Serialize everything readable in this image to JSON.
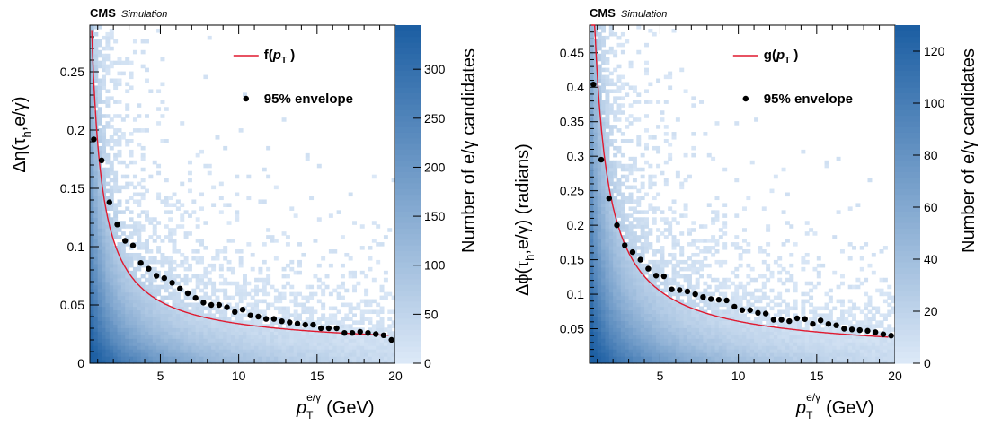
{
  "chart_data": [
    {
      "type": "heatmap",
      "experiment": "CMS",
      "status": "Simulation",
      "xlabel": "p",
      "xlabel_sub": "T",
      "xlabel_sup": "e/γ",
      "xlabel_unit": "(GeV)",
      "ylabel": "Δη(τ",
      "ylabel_sub": "h",
      "ylabel_tail": ",e/γ)",
      "zlabel": "Number of e/γ candidates",
      "xlim": [
        0.5,
        20
      ],
      "ylim": [
        0,
        0.29
      ],
      "zlim": [
        0,
        345
      ],
      "x_ticks": [
        5,
        10,
        15,
        20
      ],
      "x_tick_labels": [
        "5",
        "10",
        "15",
        "20"
      ],
      "y_ticks": [
        0,
        0.05,
        0.1,
        0.15,
        0.2,
        0.25
      ],
      "y_tick_labels": [
        "0",
        "0.05",
        "0.1",
        "0.15",
        "0.2",
        "0.25"
      ],
      "z_ticks": [
        0,
        50,
        100,
        150,
        200,
        250,
        300
      ],
      "z_tick_labels": [
        "0",
        "50",
        "100",
        "150",
        "200",
        "250",
        "300"
      ],
      "fit_function": {
        "name": "f",
        "arg": "p",
        "arg_sub": "T",
        "A": 0.0122,
        "B": 0.02,
        "C": 0.1565,
        "color": "#e0192f"
      },
      "envelope": {
        "name": "95% envelope",
        "x": [
          0.75,
          1.25,
          1.75,
          2.25,
          2.75,
          3.25,
          3.75,
          4.25,
          4.75,
          5.25,
          5.75,
          6.25,
          6.75,
          7.25,
          7.75,
          8.25,
          8.75,
          9.25,
          9.75,
          10.25,
          10.75,
          11.25,
          11.75,
          12.25,
          12.75,
          13.25,
          13.75,
          14.25,
          14.75,
          15.25,
          15.75,
          16.25,
          16.75,
          17.25,
          17.75,
          18.25,
          18.75,
          19.25,
          19.75
        ],
        "y": [
          0.192,
          0.174,
          0.138,
          0.119,
          0.105,
          0.101,
          0.086,
          0.081,
          0.075,
          0.073,
          0.069,
          0.064,
          0.06,
          0.056,
          0.052,
          0.05,
          0.05,
          0.048,
          0.044,
          0.046,
          0.041,
          0.04,
          0.038,
          0.038,
          0.036,
          0.035,
          0.034,
          0.033,
          0.033,
          0.03,
          0.03,
          0.03,
          0.026,
          0.026,
          0.027,
          0.026,
          0.025,
          0.024,
          0.02
        ]
      },
      "legend_position": "top-right",
      "colormap": [
        "#dbe8f7",
        "#1d5fa3"
      ]
    },
    {
      "type": "heatmap",
      "experiment": "CMS",
      "status": "Simulation",
      "xlabel": "p",
      "xlabel_sub": "T",
      "xlabel_sup": "e/γ",
      "xlabel_unit": "(GeV)",
      "ylabel": "Δϕ(τ",
      "ylabel_sub": "h",
      "ylabel_tail": ",e/γ) (radians)",
      "zlabel": "Number of e/γ candidates",
      "xlim": [
        0.5,
        20
      ],
      "ylim": [
        0,
        0.49
      ],
      "zlim": [
        0,
        130
      ],
      "x_ticks": [
        5,
        10,
        15,
        20
      ],
      "x_tick_labels": [
        "5",
        "10",
        "15",
        "20"
      ],
      "y_ticks": [
        0.05,
        0.1,
        0.15,
        0.2,
        0.25,
        0.3,
        0.35,
        0.4,
        0.45
      ],
      "y_tick_labels": [
        "0.05",
        "0.1",
        "0.15",
        "0.2",
        "0.25",
        "0.3",
        "0.35",
        "0.4",
        "0.45"
      ],
      "z_ticks": [
        0,
        20,
        40,
        60,
        80,
        100,
        120
      ],
      "z_tick_labels": [
        "0",
        "20",
        "40",
        "60",
        "80",
        "100",
        "120"
      ],
      "fit_function": {
        "name": "g",
        "arg": "p",
        "arg_sub": "T",
        "A": 0.0106,
        "B": 0.0329,
        "C": 0.3728,
        "color": "#e0192f"
      },
      "envelope": {
        "name": "95% envelope",
        "x": [
          0.75,
          1.25,
          1.75,
          2.25,
          2.75,
          3.25,
          3.75,
          4.25,
          4.75,
          5.25,
          5.75,
          6.25,
          6.75,
          7.25,
          7.75,
          8.25,
          8.75,
          9.25,
          9.75,
          10.25,
          10.75,
          11.25,
          11.75,
          12.25,
          12.75,
          13.25,
          13.75,
          14.25,
          14.75,
          15.25,
          15.75,
          16.25,
          16.75,
          17.25,
          17.75,
          18.25,
          18.75,
          19.25,
          19.75
        ],
        "y": [
          0.404,
          0.295,
          0.239,
          0.2,
          0.171,
          0.161,
          0.15,
          0.137,
          0.127,
          0.126,
          0.107,
          0.106,
          0.104,
          0.1,
          0.096,
          0.093,
          0.092,
          0.091,
          0.082,
          0.077,
          0.077,
          0.073,
          0.072,
          0.063,
          0.063,
          0.061,
          0.065,
          0.064,
          0.057,
          0.062,
          0.057,
          0.055,
          0.05,
          0.049,
          0.048,
          0.047,
          0.045,
          0.042,
          0.04
        ]
      },
      "legend_position": "top-right",
      "colormap": [
        "#dbe8f7",
        "#1d5fa3"
      ]
    }
  ]
}
